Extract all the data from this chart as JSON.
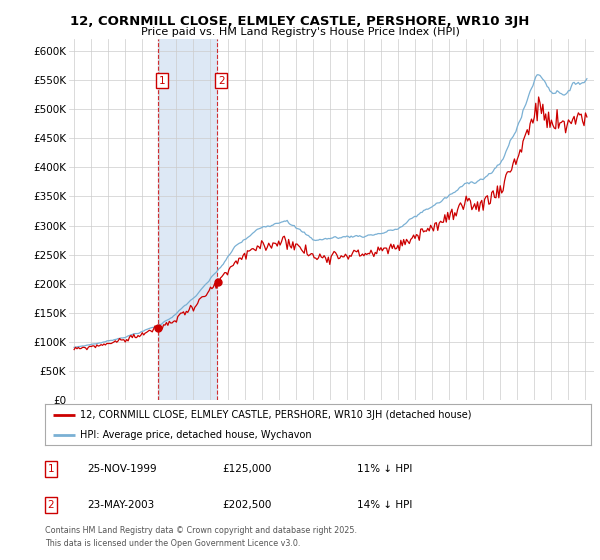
{
  "title": "12, CORNMILL CLOSE, ELMLEY CASTLE, PERSHORE, WR10 3JH",
  "subtitle": "Price paid vs. HM Land Registry's House Price Index (HPI)",
  "ylim": [
    0,
    620000
  ],
  "yticks": [
    0,
    50000,
    100000,
    150000,
    200000,
    250000,
    300000,
    350000,
    400000,
    450000,
    500000,
    550000,
    600000
  ],
  "ytick_labels": [
    "£0",
    "£50K",
    "£100K",
    "£150K",
    "£200K",
    "£250K",
    "£300K",
    "£350K",
    "£400K",
    "£450K",
    "£500K",
    "£550K",
    "£600K"
  ],
  "sale1_date": "25-NOV-1999",
  "sale1_price": 125000,
  "sale1_label": "£125,000",
  "sale1_hpi_diff": "11% ↓ HPI",
  "sale1_x": 1999.9,
  "sale2_date": "23-MAY-2003",
  "sale2_price": 202500,
  "sale2_label": "£202,500",
  "sale2_hpi_diff": "14% ↓ HPI",
  "sale2_x": 2003.38,
  "legend_line1": "12, CORNMILL CLOSE, ELMLEY CASTLE, PERSHORE, WR10 3JH (detached house)",
  "legend_line2": "HPI: Average price, detached house, Wychavon",
  "footnote": "Contains HM Land Registry data © Crown copyright and database right 2025.\nThis data is licensed under the Open Government Licence v3.0.",
  "red_color": "#cc0000",
  "blue_color": "#7ab0d4",
  "shade_color": "#dde8f5",
  "background_color": "#ffffff",
  "grid_color": "#cccccc",
  "xlim_left": 1994.7,
  "xlim_right": 2025.5
}
